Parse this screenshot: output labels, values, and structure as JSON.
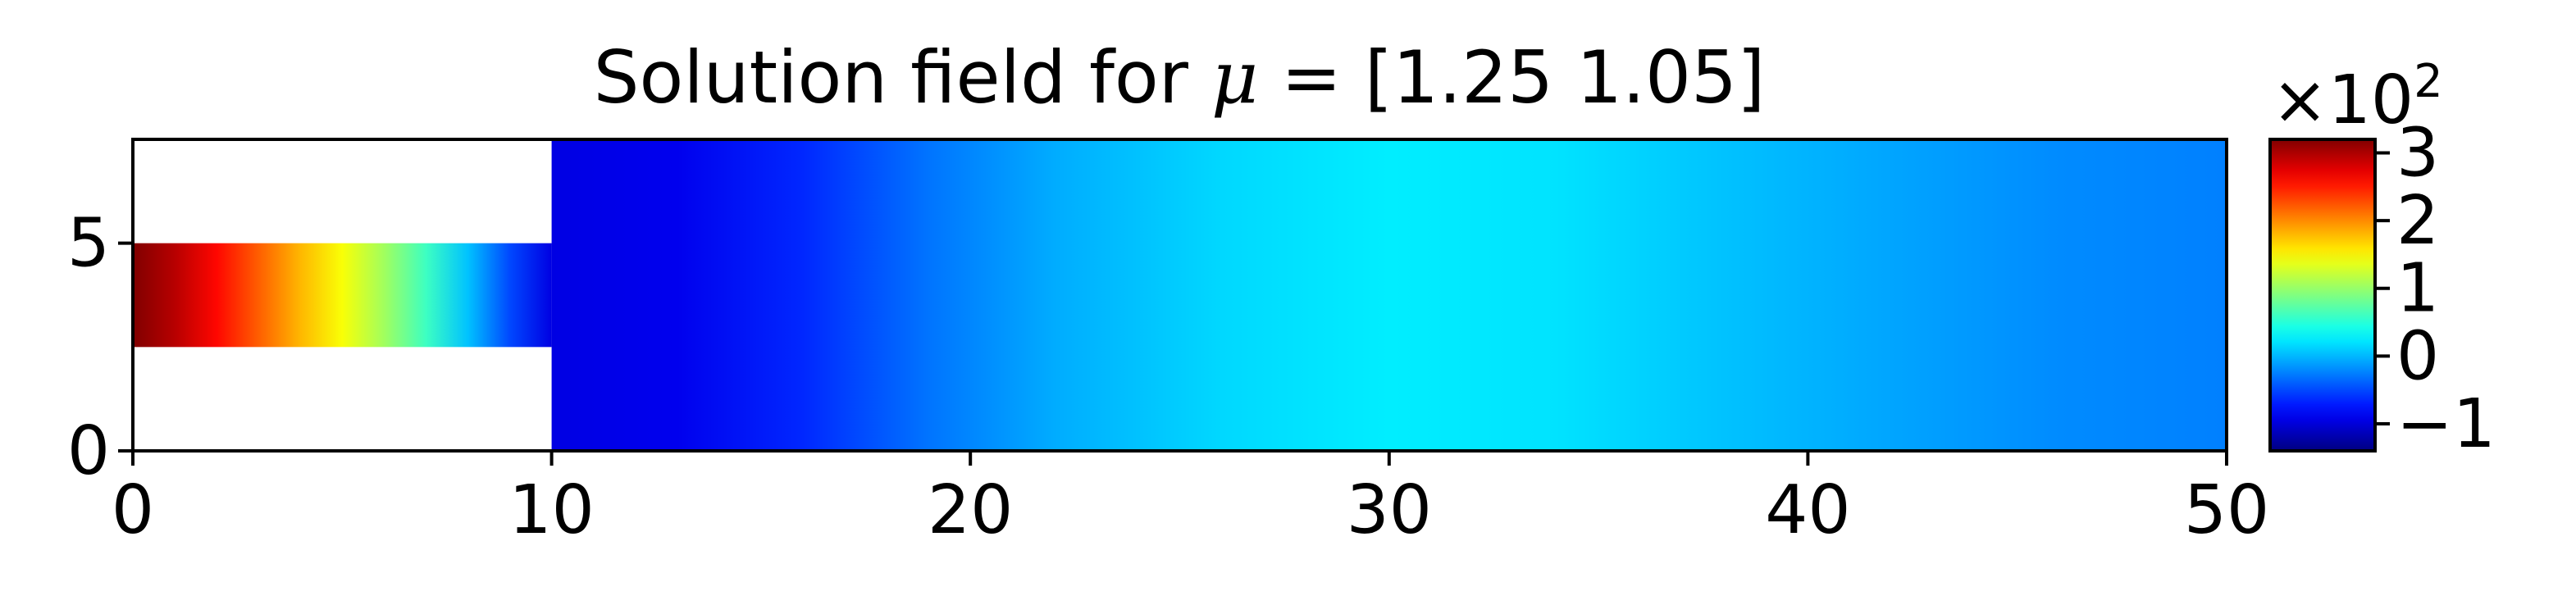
{
  "chart_data": {
    "type": "heatmap",
    "title": {
      "prefix": "Solution field for ",
      "symbol": "μ",
      "suffix": " = [1.25 1.05]"
    },
    "xlabel": "",
    "ylabel": "",
    "xlim": [
      0,
      50
    ],
    "ylim": [
      0,
      7.5
    ],
    "x_ticks": [
      0,
      10,
      20,
      30,
      40,
      50
    ],
    "x_tick_labels": [
      "0",
      "10",
      "20",
      "30",
      "40",
      "50"
    ],
    "y_ticks": [
      0,
      5
    ],
    "y_tick_labels": [
      "0",
      "5"
    ],
    "colormap": "jet",
    "domain": {
      "inlet_channel": {
        "x": [
          0,
          10
        ],
        "y": [
          2.5,
          5
        ]
      },
      "main_channel": {
        "x": [
          10,
          50
        ],
        "y": [
          0,
          7.5
        ]
      }
    },
    "field_profile": [
      {
        "x": 0,
        "value": 3.2
      },
      {
        "x": 1,
        "value": 2.95
      },
      {
        "x": 2,
        "value": 2.6
      },
      {
        "x": 3,
        "value": 2.2
      },
      {
        "x": 4,
        "value": 1.8
      },
      {
        "x": 5,
        "value": 1.45
      },
      {
        "x": 6,
        "value": 1.05
      },
      {
        "x": 7,
        "value": 0.6
      },
      {
        "x": 8,
        "value": 0.05
      },
      {
        "x": 9,
        "value": -0.5
      },
      {
        "x": 10,
        "value": -0.95
      },
      {
        "x": 13,
        "value": -0.9
      },
      {
        "x": 16,
        "value": -0.65
      },
      {
        "x": 19,
        "value": -0.3
      },
      {
        "x": 22,
        "value": -0.05
      },
      {
        "x": 26,
        "value": 0.15
      },
      {
        "x": 30,
        "value": 0.25
      },
      {
        "x": 34,
        "value": 0.2
      },
      {
        "x": 38,
        "value": 0.05
      },
      {
        "x": 42,
        "value": -0.08
      },
      {
        "x": 46,
        "value": -0.2
      },
      {
        "x": 50,
        "value": -0.25
      }
    ],
    "colorbar": {
      "min": -1.4,
      "max": 3.2,
      "ticks": [
        3,
        2,
        1,
        0,
        -1
      ],
      "tick_labels": [
        "3",
        "2",
        "1",
        "0",
        "−1"
      ],
      "multiplier": {
        "base": "×10",
        "exponent": "2"
      }
    }
  }
}
